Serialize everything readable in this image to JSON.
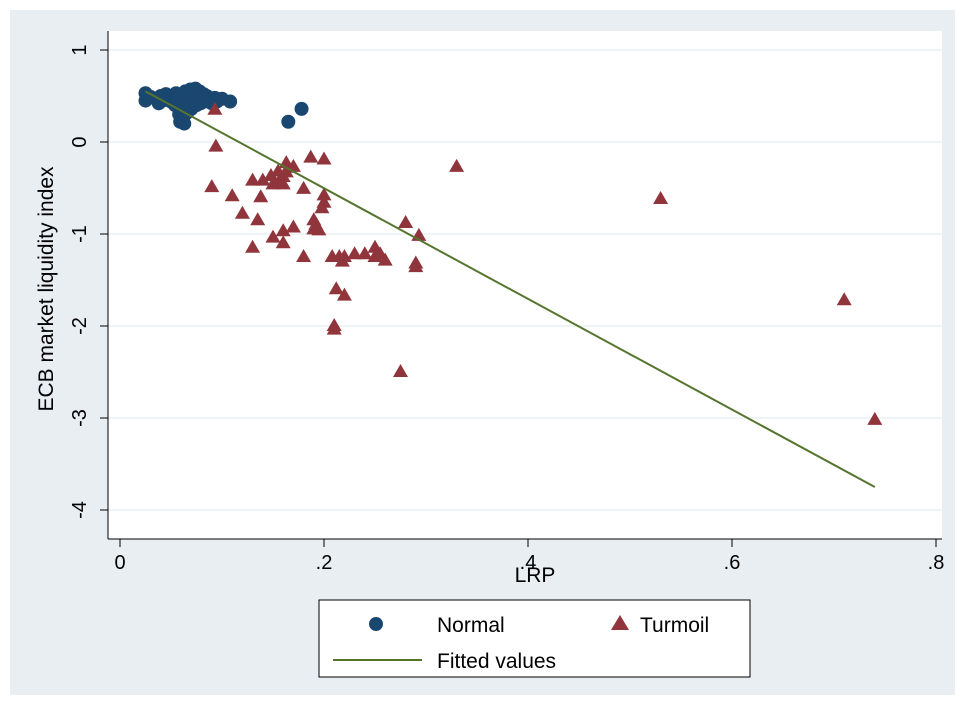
{
  "chart_data": {
    "type": "scatter",
    "xlabel": "LRP",
    "ylabel": "ECB market liquidity index",
    "xlim": [
      0,
      0.8
    ],
    "ylim": [
      -4,
      1
    ],
    "x_ticks": [
      {
        "value": 0,
        "label": "0"
      },
      {
        "value": 0.2,
        "label": ".2"
      },
      {
        "value": 0.4,
        "label": ".4"
      },
      {
        "value": 0.6,
        "label": ".6"
      },
      {
        "value": 0.8,
        "label": ".8"
      }
    ],
    "y_ticks": [
      {
        "value": -4,
        "label": "-4"
      },
      {
        "value": -3,
        "label": "-3"
      },
      {
        "value": -2,
        "label": "-2"
      },
      {
        "value": -1,
        "label": "-1"
      },
      {
        "value": 0,
        "label": "0"
      },
      {
        "value": 1,
        "label": "1"
      }
    ],
    "grid": "horizontal",
    "legend_position": "bottom",
    "series": [
      {
        "name": "Normal",
        "marker": "circle",
        "color": "#1a476f",
        "points": [
          [
            0.025,
            0.53
          ],
          [
            0.025,
            0.45
          ],
          [
            0.03,
            0.49
          ],
          [
            0.035,
            0.47
          ],
          [
            0.038,
            0.42
          ],
          [
            0.04,
            0.5
          ],
          [
            0.042,
            0.45
          ],
          [
            0.045,
            0.52
          ],
          [
            0.048,
            0.48
          ],
          [
            0.05,
            0.44
          ],
          [
            0.052,
            0.5
          ],
          [
            0.054,
            0.4
          ],
          [
            0.055,
            0.53
          ],
          [
            0.057,
            0.46
          ],
          [
            0.058,
            0.3
          ],
          [
            0.059,
            0.22
          ],
          [
            0.06,
            0.5
          ],
          [
            0.061,
            0.38
          ],
          [
            0.062,
            0.27
          ],
          [
            0.063,
            0.2
          ],
          [
            0.064,
            0.55
          ],
          [
            0.065,
            0.45
          ],
          [
            0.066,
            0.32
          ],
          [
            0.067,
            0.51
          ],
          [
            0.068,
            0.42
          ],
          [
            0.069,
            0.57
          ],
          [
            0.07,
            0.36
          ],
          [
            0.071,
            0.48
          ],
          [
            0.072,
            0.53
          ],
          [
            0.073,
            0.44
          ],
          [
            0.074,
            0.58
          ],
          [
            0.075,
            0.4
          ],
          [
            0.076,
            0.5
          ],
          [
            0.077,
            0.46
          ],
          [
            0.078,
            0.55
          ],
          [
            0.079,
            0.42
          ],
          [
            0.08,
            0.48
          ],
          [
            0.082,
            0.52
          ],
          [
            0.083,
            0.44
          ],
          [
            0.085,
            0.5
          ],
          [
            0.087,
            0.46
          ],
          [
            0.09,
            0.42
          ],
          [
            0.093,
            0.48
          ],
          [
            0.095,
            0.44
          ],
          [
            0.1,
            0.47
          ],
          [
            0.108,
            0.44
          ],
          [
            0.165,
            0.22
          ],
          [
            0.178,
            0.36
          ]
        ]
      },
      {
        "name": "Turmoil",
        "marker": "triangle",
        "color": "#90353b",
        "points": [
          [
            0.09,
            -0.49
          ],
          [
            0.093,
            0.35
          ],
          [
            0.094,
            -0.05
          ],
          [
            0.11,
            -0.59
          ],
          [
            0.12,
            -0.78
          ],
          [
            0.13,
            -1.15
          ],
          [
            0.13,
            -0.42
          ],
          [
            0.135,
            -0.85
          ],
          [
            0.138,
            -0.6
          ],
          [
            0.14,
            -0.42
          ],
          [
            0.148,
            -0.37
          ],
          [
            0.15,
            -1.04
          ],
          [
            0.15,
            -0.46
          ],
          [
            0.155,
            -0.32
          ],
          [
            0.155,
            -0.45
          ],
          [
            0.16,
            -1.1
          ],
          [
            0.16,
            -0.38
          ],
          [
            0.16,
            -0.97
          ],
          [
            0.16,
            -0.46
          ],
          [
            0.163,
            -0.23
          ],
          [
            0.163,
            -0.33
          ],
          [
            0.165,
            -0.28
          ],
          [
            0.17,
            -0.93
          ],
          [
            0.17,
            -0.27
          ],
          [
            0.18,
            -0.51
          ],
          [
            0.18,
            -1.25
          ],
          [
            0.187,
            -0.17
          ],
          [
            0.19,
            -0.85
          ],
          [
            0.19,
            -0.95
          ],
          [
            0.192,
            -0.9
          ],
          [
            0.195,
            -0.96
          ],
          [
            0.198,
            -0.72
          ],
          [
            0.2,
            -0.66
          ],
          [
            0.2,
            -0.58
          ],
          [
            0.2,
            -0.19
          ],
          [
            0.208,
            -1.25
          ],
          [
            0.21,
            -2.0
          ],
          [
            0.21,
            -2.04
          ],
          [
            0.212,
            -1.6
          ],
          [
            0.215,
            -1.25
          ],
          [
            0.218,
            -1.3
          ],
          [
            0.22,
            -1.25
          ],
          [
            0.22,
            -1.67
          ],
          [
            0.23,
            -1.22
          ],
          [
            0.24,
            -1.22
          ],
          [
            0.25,
            -1.15
          ],
          [
            0.25,
            -1.25
          ],
          [
            0.255,
            -1.22
          ],
          [
            0.26,
            -1.29
          ],
          [
            0.275,
            -2.5
          ],
          [
            0.28,
            -0.88
          ],
          [
            0.29,
            -1.32
          ],
          [
            0.29,
            -1.36
          ],
          [
            0.293,
            -1.02
          ],
          [
            0.33,
            -0.27
          ],
          [
            0.53,
            -0.62
          ],
          [
            0.71,
            -1.72
          ],
          [
            0.74,
            -3.02
          ]
        ]
      },
      {
        "name": "Fitted values",
        "marker": "line",
        "color": "#55752f",
        "points": [
          [
            0.025,
            0.55
          ],
          [
            0.74,
            -3.75
          ]
        ]
      }
    ]
  }
}
